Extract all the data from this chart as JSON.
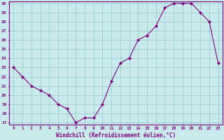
{
  "x": [
    0,
    1,
    2,
    3,
    4,
    5,
    6,
    7,
    8,
    9,
    10,
    11,
    12,
    13,
    14,
    15,
    16,
    17,
    18,
    19,
    20,
    21,
    22,
    23
  ],
  "y": [
    23,
    22,
    21,
    20.5,
    20,
    19,
    18.5,
    17,
    17.5,
    17.5,
    19,
    21.5,
    23.5,
    24,
    26,
    26.5,
    27.5,
    29.5,
    30,
    30,
    30,
    29,
    28,
    23.5
  ],
  "line_color": "#800080",
  "marker_color": "#800080",
  "bg_color": "#c8eaea",
  "grid_color": "#9ecece",
  "xlabel": "Windchill (Refroidissement éolien,°C)",
  "xlabel_color": "#800080",
  "ylim_min": 17,
  "ylim_max": 30,
  "yticks": [
    17,
    18,
    19,
    20,
    21,
    22,
    23,
    24,
    25,
    26,
    27,
    28,
    29,
    30
  ],
  "xtick_labels": [
    "0",
    "1",
    "2",
    "3",
    "4",
    "5",
    "6",
    "7",
    "8",
    "9",
    "10",
    "11",
    "12",
    "13",
    "14",
    "15",
    "16",
    "17",
    "18",
    "19",
    "20",
    "21",
    "22",
    "23"
  ],
  "axis_color": "#800080",
  "tick_color": "#800080"
}
